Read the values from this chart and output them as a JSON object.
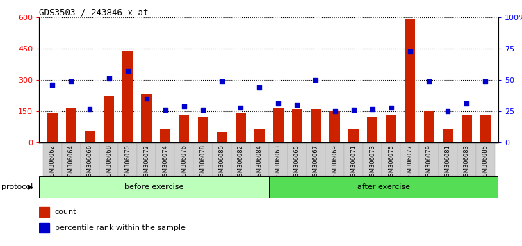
{
  "title": "GDS3503 / 243846_x_at",
  "categories": [
    "GSM306062",
    "GSM306064",
    "GSM306066",
    "GSM306068",
    "GSM306070",
    "GSM306072",
    "GSM306074",
    "GSM306076",
    "GSM306078",
    "GSM306080",
    "GSM306082",
    "GSM306084",
    "GSM306063",
    "GSM306065",
    "GSM306067",
    "GSM306069",
    "GSM306071",
    "GSM306073",
    "GSM306075",
    "GSM306077",
    "GSM306079",
    "GSM306081",
    "GSM306083",
    "GSM306085"
  ],
  "counts": [
    140,
    165,
    55,
    225,
    440,
    235,
    65,
    130,
    120,
    50,
    140,
    65,
    165,
    160,
    160,
    150,
    65,
    120,
    135,
    590,
    150,
    65,
    130,
    130
  ],
  "percentile_ranks": [
    46,
    49,
    27,
    51,
    57,
    35,
    26,
    29,
    26,
    49,
    28,
    44,
    31,
    30,
    50,
    25,
    26,
    27,
    28,
    73,
    49,
    25,
    31,
    49
  ],
  "before_exercise_count": 12,
  "after_exercise_count": 12,
  "bar_color": "#CC2200",
  "dot_color": "#0000CC",
  "ylim_left": [
    0,
    600
  ],
  "ylim_right": [
    0,
    100
  ],
  "yticks_left": [
    0,
    150,
    300,
    450,
    600
  ],
  "yticks_right": [
    0,
    25,
    50,
    75,
    100
  ],
  "before_color": "#bbffbb",
  "after_color": "#55dd55",
  "protocol_label": "protocol",
  "before_label": "before exercise",
  "after_label": "after exercise",
  "legend_count_label": "count",
  "legend_pct_label": "percentile rank within the sample"
}
